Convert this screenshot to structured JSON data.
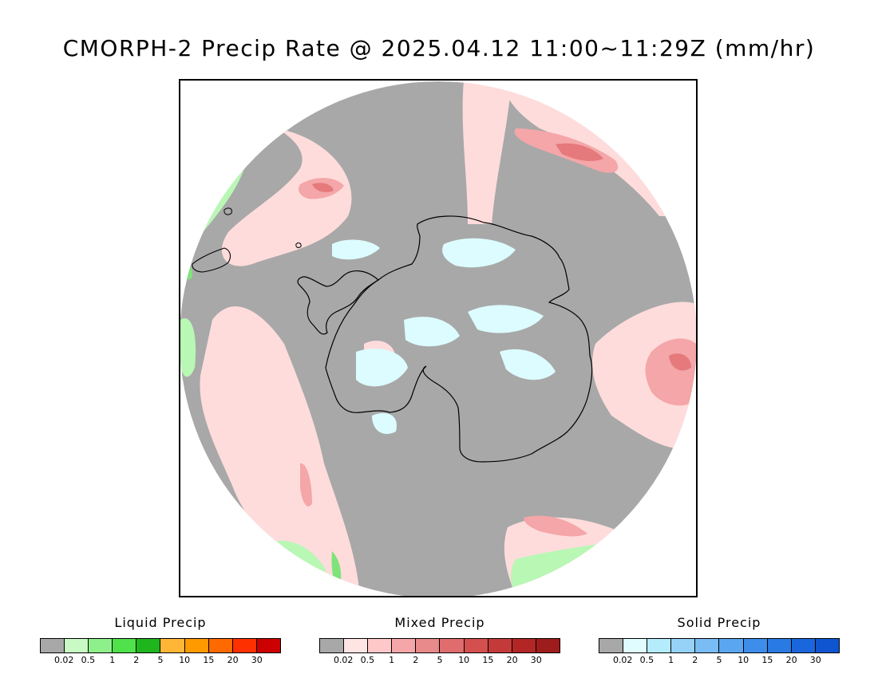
{
  "title": "CMORPH-2 Precip Rate @ 2025.04.12 11:00~11:29Z (mm/hr)",
  "map": {
    "projection": "south-polar-stereographic",
    "colors": {
      "no_data": "#ffffff",
      "ocean_gray": "#a8a8a8",
      "mixed_light": "#ffdcdc",
      "mixed_moderate": "#f4a6a8",
      "mixed_heavy": "#e5797c",
      "liquid_light": "#b8f7b4",
      "liquid_moderate": "#7fe37a",
      "solid_light": "#dcfcff",
      "coastline": "#000000"
    }
  },
  "legends": [
    {
      "title": "Liquid Precip",
      "colors": [
        "#a8a8a8",
        "#c9f9c4",
        "#8ef08a",
        "#4fe24a",
        "#1fb51c",
        "#ffb536",
        "#ff9a00",
        "#ff6a00",
        "#ff3000",
        "#cc0000"
      ],
      "ticks": [
        "0.02",
        "0.5",
        "1",
        "2",
        "5",
        "10",
        "15",
        "20",
        "30"
      ]
    },
    {
      "title": "Mixed Precip",
      "colors": [
        "#a8a8a8",
        "#ffe4e4",
        "#ffc8c8",
        "#f4a6a8",
        "#e8898b",
        "#e06c6e",
        "#d4504f",
        "#c43a3a",
        "#b22626",
        "#9e1c1c"
      ],
      "ticks": [
        "0.02",
        "0.5",
        "1",
        "2",
        "5",
        "10",
        "15",
        "20",
        "30"
      ]
    },
    {
      "title": "Solid Precip",
      "colors": [
        "#a8a8a8",
        "#e0fcff",
        "#b4ecfb",
        "#96d2f8",
        "#7abcf4",
        "#5aa6f0",
        "#3c8eea",
        "#2a7ae4",
        "#1a66dc",
        "#0f55cf"
      ],
      "ticks": [
        "0.02",
        "0.5",
        "1",
        "2",
        "5",
        "10",
        "15",
        "20",
        "30"
      ]
    }
  ]
}
